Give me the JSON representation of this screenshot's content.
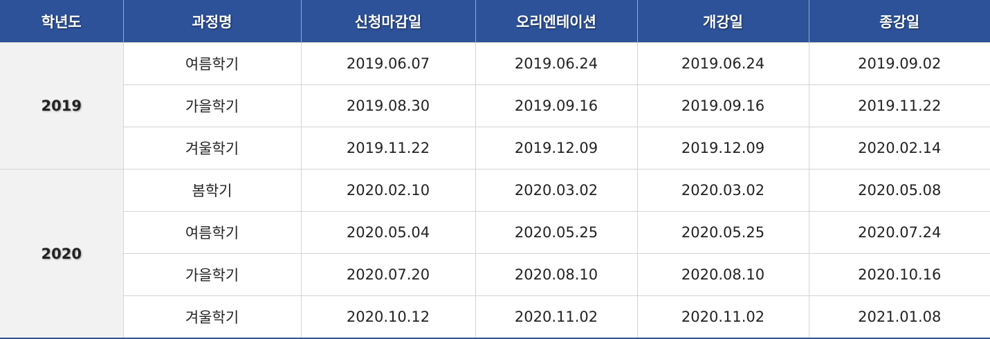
{
  "colors": {
    "header": "#2d5299",
    "year_bg": "#f2f2f2"
  },
  "headers": [
    "학년도",
    "과정명",
    "신청마감일",
    "오리엔테이션",
    "개강일",
    "종강일"
  ],
  "groups": [
    {
      "year": "2019",
      "rows": [
        [
          "여름학기",
          "2019.06.07",
          "2019.06.24",
          "2019.06.24",
          "2019.09.02"
        ],
        [
          "가을학기",
          "2019.08.30",
          "2019.09.16",
          "2019.09.16",
          "2019.11.22"
        ],
        [
          "겨울학기",
          "2019.11.22",
          "2019.12.09",
          "2019.12.09",
          "2020.02.14"
        ]
      ]
    },
    {
      "year": "2020",
      "rows": [
        [
          "봄학기",
          "2020.02.10",
          "2020.03.02",
          "2020.03.02",
          "2020.05.08"
        ],
        [
          "여름학기",
          "2020.05.04",
          "2020.05.25",
          "2020.05.25",
          "2020.07.24"
        ],
        [
          "가을학기",
          "2020.07.20",
          "2020.08.10",
          "2020.08.10",
          "2020.10.16"
        ],
        [
          "겨울학기",
          "2020.10.12",
          "2020.11.02",
          "2020.11.02",
          "2021.01.08"
        ]
      ]
    }
  ]
}
